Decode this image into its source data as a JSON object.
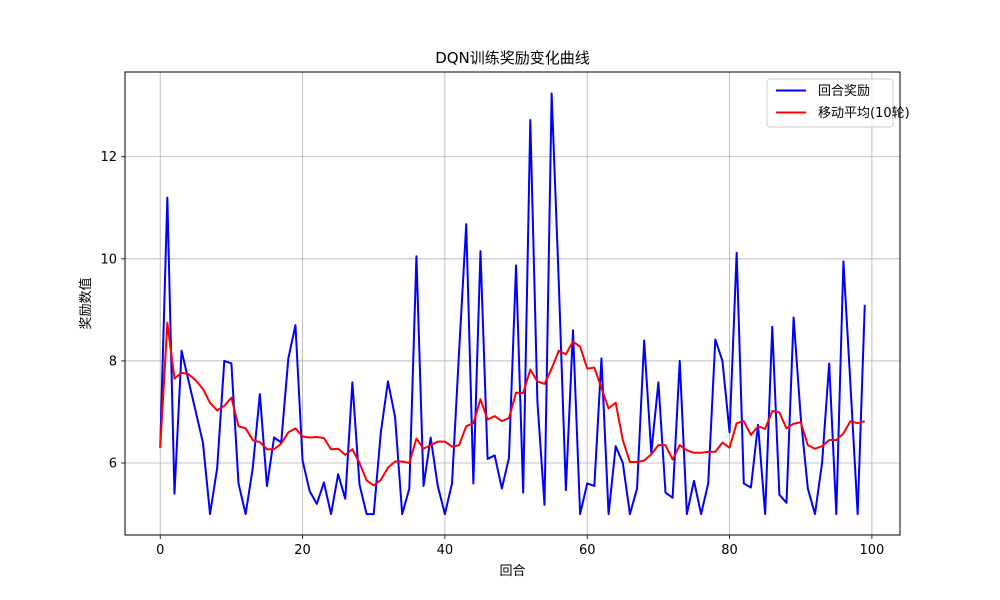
{
  "chart_data": {
    "type": "line",
    "title": "DQN训练奖励变化曲线",
    "xlabel": "回合",
    "ylabel": "奖励数值",
    "xlim": [
      -4.95,
      103.95
    ],
    "ylim": [
      4.59,
      13.66
    ],
    "xticks": [
      0,
      20,
      40,
      60,
      80,
      100
    ],
    "yticks": [
      6,
      8,
      10,
      12
    ],
    "grid": true,
    "legend_position": "top-right",
    "x": [
      0,
      1,
      2,
      3,
      4,
      5,
      6,
      7,
      8,
      9,
      10,
      11,
      12,
      13,
      14,
      15,
      16,
      17,
      18,
      19,
      20,
      21,
      22,
      23,
      24,
      25,
      26,
      27,
      28,
      29,
      30,
      31,
      32,
      33,
      34,
      35,
      36,
      37,
      38,
      39,
      40,
      41,
      42,
      43,
      44,
      45,
      46,
      47,
      48,
      49,
      50,
      51,
      52,
      53,
      54,
      55,
      56,
      57,
      58,
      59,
      60,
      61,
      62,
      63,
      64,
      65,
      66,
      67,
      68,
      69,
      70,
      71,
      72,
      73,
      74,
      75,
      76,
      77,
      78,
      79,
      80,
      81,
      82,
      83,
      84,
      85,
      86,
      87,
      88,
      89,
      90,
      91,
      92,
      93,
      94,
      95,
      96,
      97,
      98,
      99
    ],
    "series": [
      {
        "name": "回合奖励",
        "color": "#0000ff",
        "values": [
          6.3,
          11.2,
          5.4,
          8.2,
          7.6,
          7.0,
          6.4,
          5.0,
          5.9,
          8.0,
          7.95,
          5.6,
          5.0,
          5.9,
          7.35,
          5.55,
          6.5,
          6.4,
          8.05,
          8.7,
          6.05,
          5.45,
          5.2,
          5.62,
          5.0,
          5.78,
          5.3,
          7.58,
          5.58,
          5.0,
          5.0,
          6.6,
          7.6,
          6.9,
          5.0,
          5.5,
          10.05,
          5.55,
          6.5,
          5.55,
          5.0,
          5.6,
          8.2,
          10.68,
          5.6,
          10.15,
          6.08,
          6.15,
          5.5,
          6.1,
          9.87,
          5.42,
          12.72,
          7.2,
          5.18,
          13.24,
          9.55,
          5.47,
          8.6,
          5.0,
          5.6,
          5.55,
          8.05,
          5.0,
          6.33,
          6.0,
          5.0,
          5.5,
          8.4,
          6.2,
          7.58,
          5.42,
          5.32,
          8.0,
          5.0,
          5.65,
          5.0,
          5.6,
          8.42,
          8.0,
          6.6,
          10.12,
          5.6,
          5.52,
          6.75,
          5.0,
          8.67,
          5.38,
          5.22,
          8.85,
          6.9,
          5.5,
          5.0,
          6.0,
          7.95,
          5.0,
          9.95,
          7.5,
          5.0,
          9.1
        ]
      },
      {
        "name": "移动平均(10轮)",
        "color": "#ff0000",
        "values": [
          6.3,
          8.75,
          7.65,
          7.77,
          7.74,
          7.62,
          7.45,
          7.18,
          7.03,
          7.12,
          7.28,
          6.72,
          6.68,
          6.45,
          6.41,
          6.27,
          6.27,
          6.38,
          6.6,
          6.68,
          6.52,
          6.5,
          6.51,
          6.49,
          6.27,
          6.28,
          6.16,
          6.27,
          6.0,
          5.66,
          5.56,
          5.67,
          5.91,
          6.03,
          6.03,
          6.0,
          6.48,
          6.28,
          6.35,
          6.42,
          6.42,
          6.32,
          6.35,
          6.72,
          6.78,
          7.25,
          6.85,
          6.92,
          6.82,
          6.88,
          7.38,
          7.37,
          7.83,
          7.6,
          7.55,
          7.85,
          8.2,
          8.13,
          8.38,
          8.28,
          7.85,
          7.87,
          7.47,
          7.07,
          7.18,
          6.45,
          6.02,
          6.02,
          6.05,
          6.17,
          6.35,
          6.35,
          6.07,
          6.35,
          6.25,
          6.2,
          6.2,
          6.22,
          6.22,
          6.4,
          6.3,
          6.78,
          6.82,
          6.55,
          6.72,
          6.67,
          7.02,
          6.99,
          6.68,
          6.77,
          6.8,
          6.35,
          6.28,
          6.33,
          6.45,
          6.45,
          6.58,
          6.82,
          6.78,
          6.82
        ]
      }
    ]
  }
}
